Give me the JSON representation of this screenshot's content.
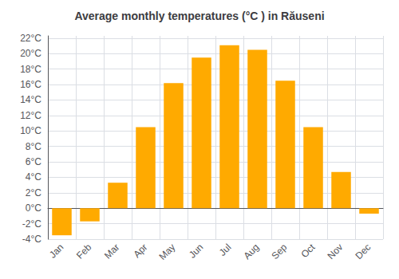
{
  "chart_data": {
    "type": "bar",
    "title": "Average monthly temperatures (°C ) in Răuseni",
    "categories": [
      "Jan",
      "Feb",
      "Mar",
      "Apr",
      "May",
      "Jun",
      "Jul",
      "Aug",
      "Sep",
      "Oct",
      "Nov",
      "Dec"
    ],
    "values": [
      -3.5,
      -1.7,
      3.3,
      10.5,
      16.2,
      19.5,
      21.1,
      20.5,
      16.5,
      10.5,
      4.7,
      -0.7
    ],
    "color": "#FFAA00",
    "ylim": [
      -4,
      22.3
    ],
    "yticks": [
      {
        "value": -4,
        "label": "-4°C"
      },
      {
        "value": -2,
        "label": "-2°C"
      },
      {
        "value": 0,
        "label": "0°C"
      },
      {
        "value": 2,
        "label": "2°C"
      },
      {
        "value": 4,
        "label": "4°C"
      },
      {
        "value": 6,
        "label": "6°C"
      },
      {
        "value": 8,
        "label": "8°C"
      },
      {
        "value": 10,
        "label": "10°C"
      },
      {
        "value": 12,
        "label": "12°C"
      },
      {
        "value": 14,
        "label": "14°C"
      },
      {
        "value": 16,
        "label": "16°C"
      },
      {
        "value": 18,
        "label": "18°C"
      },
      {
        "value": 20,
        "label": "20°C"
      },
      {
        "value": 22,
        "label": "22°C"
      }
    ],
    "grid": true
  }
}
